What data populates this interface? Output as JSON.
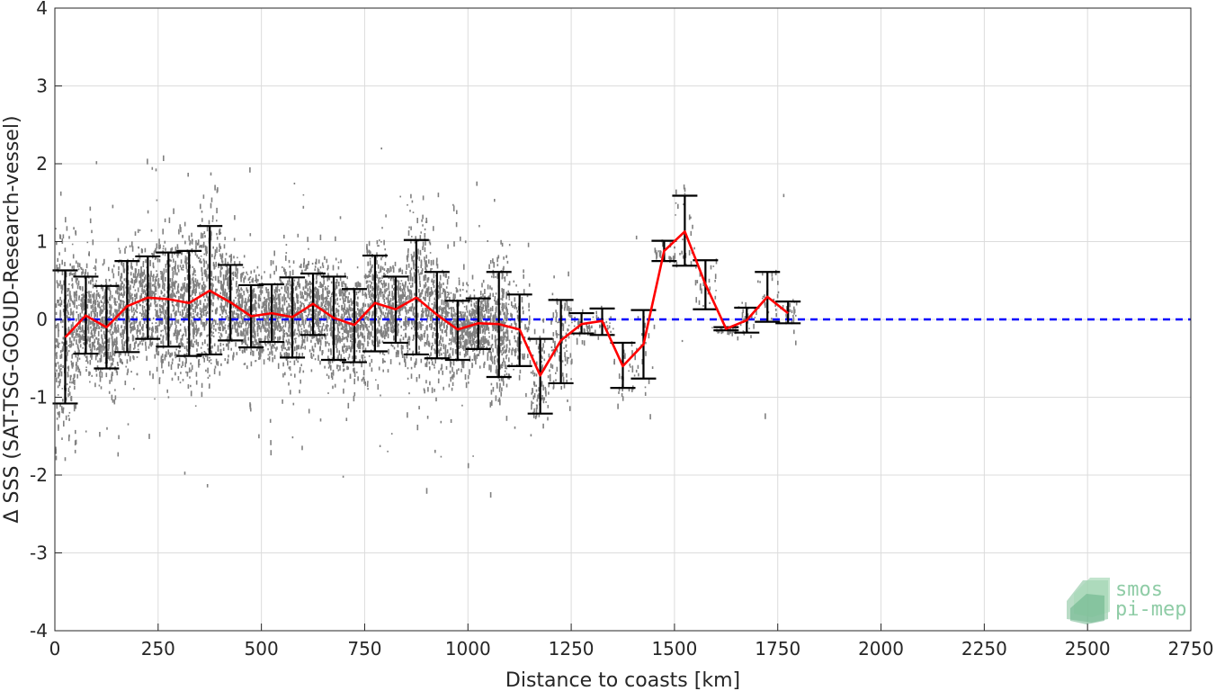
{
  "chart_data": {
    "type": "scatter",
    "xlabel": "Distance to coasts [km]",
    "ylabel": "Δ SSS (SAT-TSG-GOSUD-Research-vessel)",
    "xlim": [
      0,
      2750
    ],
    "ylim": [
      -4,
      4
    ],
    "xticks": [
      0,
      250,
      500,
      750,
      1000,
      1250,
      1500,
      1750,
      2000,
      2250,
      2500,
      2750
    ],
    "yticks": [
      -4,
      -3,
      -2,
      -1,
      0,
      1,
      2,
      3,
      4
    ],
    "grid": true,
    "colors": {
      "scatter": "#808080",
      "mean_line": "#ff0000",
      "error_bars": "#000000",
      "zero_line": "#0000ff"
    },
    "reference_line": {
      "y": 0,
      "style": "dashed"
    },
    "binned_series": {
      "x": [
        25,
        75,
        125,
        175,
        225,
        275,
        325,
        375,
        425,
        475,
        525,
        575,
        625,
        675,
        725,
        775,
        825,
        875,
        925,
        975,
        1025,
        1075,
        1125,
        1175,
        1225,
        1275,
        1325,
        1375,
        1425,
        1475,
        1525,
        1575,
        1625,
        1675,
        1725,
        1775
      ],
      "mean": [
        -0.23,
        0.05,
        -0.1,
        0.17,
        0.28,
        0.26,
        0.21,
        0.37,
        0.22,
        0.04,
        0.08,
        0.03,
        0.2,
        0.02,
        -0.07,
        0.21,
        0.13,
        0.28,
        0.06,
        -0.13,
        -0.05,
        -0.06,
        -0.13,
        -0.72,
        -0.27,
        -0.06,
        -0.02,
        -0.6,
        -0.32,
        0.88,
        1.13,
        0.45,
        -0.12,
        -0.01,
        0.29,
        0.08
      ],
      "low": [
        -1.08,
        -0.44,
        -0.63,
        -0.42,
        -0.25,
        -0.35,
        -0.47,
        -0.45,
        -0.27,
        -0.36,
        -0.29,
        -0.49,
        -0.2,
        -0.52,
        -0.55,
        -0.41,
        -0.3,
        -0.45,
        -0.5,
        -0.52,
        -0.38,
        -0.74,
        -0.6,
        -1.21,
        -0.82,
        -0.18,
        -0.2,
        -0.88,
        -0.76,
        0.75,
        0.69,
        0.13,
        -0.14,
        -0.17,
        -0.03,
        -0.05
      ],
      "high": [
        0.63,
        0.55,
        0.43,
        0.75,
        0.81,
        0.86,
        0.88,
        1.2,
        0.7,
        0.44,
        0.45,
        0.54,
        0.59,
        0.55,
        0.39,
        0.82,
        0.55,
        1.02,
        0.61,
        0.24,
        0.27,
        0.61,
        0.32,
        -0.25,
        0.25,
        0.08,
        0.14,
        -0.3,
        0.12,
        1.01,
        1.59,
        0.76,
        -0.1,
        0.15,
        0.61,
        0.23
      ]
    }
  },
  "logo": {
    "line1": "smos",
    "line2": "pi-mep"
  }
}
